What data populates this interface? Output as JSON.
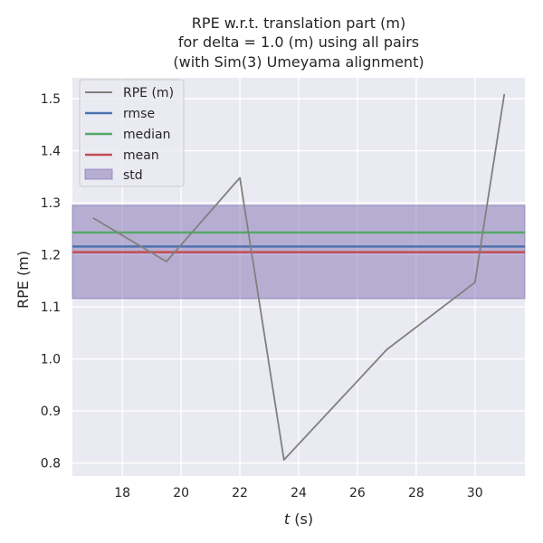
{
  "chart_data": {
    "type": "line",
    "title_lines": [
      "RPE w.r.t. translation part (m)",
      "for delta = 1.0 (m) using all pairs",
      "(with Sim(3) Umeyama alignment)"
    ],
    "xlabel_italic": "t",
    "xlabel_rest": " (s)",
    "ylabel": "RPE (m)",
    "xlim": [
      16.3,
      31.7
    ],
    "ylim": [
      0.775,
      1.54
    ],
    "x_ticks": [
      18,
      20,
      22,
      24,
      26,
      28,
      30
    ],
    "x_tick_labels": [
      "18",
      "20",
      "22",
      "24",
      "26",
      "28",
      "30"
    ],
    "y_ticks": [
      0.8,
      0.9,
      1.0,
      1.1,
      1.2,
      1.3,
      1.4,
      1.5
    ],
    "y_tick_labels": [
      "0.8",
      "0.9",
      "1.0",
      "1.1",
      "1.2",
      "1.3",
      "1.4",
      "1.5"
    ],
    "grid": true,
    "legend_position": "top-left",
    "series": [
      {
        "name": "RPE (m)",
        "color": "#808080",
        "x": [
          17.0,
          19.5,
          22.0,
          23.5,
          27.0,
          30.0,
          31.0
        ],
        "y": [
          1.271,
          1.187,
          1.348,
          0.806,
          1.018,
          1.147,
          1.509
        ]
      }
    ],
    "stats": {
      "rmse": {
        "name": "rmse",
        "value": 1.216,
        "color": "#4c72b0"
      },
      "median": {
        "name": "median",
        "value": 1.243,
        "color": "#55a868"
      },
      "mean": {
        "name": "mean",
        "value": 1.205,
        "color": "#c44e52"
      },
      "std": {
        "name": "std",
        "lower": 1.116,
        "upper": 1.295,
        "color": "#8172b2"
      }
    },
    "legend": [
      "RPE (m)",
      "rmse",
      "median",
      "mean",
      "std"
    ]
  }
}
